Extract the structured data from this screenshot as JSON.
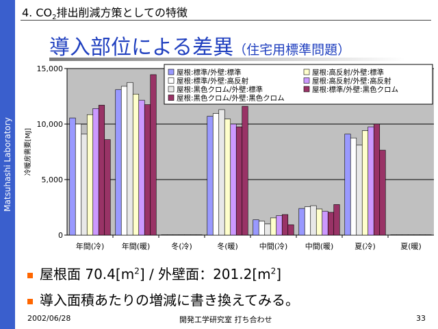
{
  "sidebar": {
    "text": "Matsuhashi Laboratory"
  },
  "header": {
    "section_prefix": "4. CO",
    "section_sub": "2",
    "section_suffix": "排出削減方策としての特徴",
    "title": "導入部位による差異",
    "title_sub": "（住宅用標準問題）"
  },
  "chart_data": {
    "type": "bar",
    "ylabel": "冷暖房需要[MJ]",
    "ylim": [
      0,
      15000
    ],
    "yticks": [
      "0",
      "5,000",
      "10,000",
      "15,000"
    ],
    "ytick_values": [
      0,
      5000,
      10000,
      15000
    ],
    "categories": [
      "年間(冷)",
      "年間(暖)",
      "冬(冷)",
      "冬(暖)",
      "中間(冷)",
      "中間(暖)",
      "夏(冷)",
      "夏(暖)"
    ],
    "series": [
      {
        "name": "屋根:標準/外壁:標準",
        "color": "#9999ff",
        "values": [
          10550,
          13100,
          0,
          10700,
          1380,
          2400,
          9100,
          30
        ]
      },
      {
        "name": "屋根:標準/外壁:高反射",
        "color": "#ffffff",
        "values": [
          10000,
          13400,
          0,
          10950,
          1250,
          2550,
          8750,
          30
        ]
      },
      {
        "name": "屋根:黒色クロム/外壁:標準",
        "color": "#e8e8e8",
        "values": [
          9100,
          13750,
          0,
          11300,
          1000,
          2650,
          8100,
          30
        ]
      },
      {
        "name": "屋根:黒色クロム/外壁:黒色クロム",
        "color": "#993366",
        "values": [
          8600,
          14450,
          0,
          11600,
          930,
          2750,
          7650,
          30
        ]
      },
      {
        "name": "屋根:高反射/外壁:標準",
        "color": "#ffffcc",
        "values": [
          10850,
          12700,
          0,
          10450,
          1550,
          2350,
          9400,
          30
        ]
      },
      {
        "name": "屋根:高反射/外壁:高反射",
        "color": "#cc99ff",
        "values": [
          11400,
          12150,
          0,
          10000,
          1750,
          2150,
          9750,
          30
        ]
      },
      {
        "name": "屋根:標準/外壁:黒色クロム",
        "color": "#993366",
        "values": [
          11700,
          11750,
          0,
          9750,
          1850,
          2050,
          10000,
          30
        ]
      }
    ],
    "bar_order": [
      0,
      1,
      2,
      4,
      5,
      6,
      3
    ],
    "legend_order": [
      0,
      4,
      1,
      5,
      2,
      6,
      3
    ],
    "legend_placement": "top-right",
    "grid": true
  },
  "bullets": [
    {
      "text_a": "屋根面 70.4[m",
      "sup_a": "2",
      "text_b": "] / 外壁面：201.2[m",
      "sup_b": "2",
      "text_c": "]"
    },
    {
      "text_a": "導入面積あたりの増減に書き換えてみる。"
    }
  ],
  "footer": {
    "date": "2002/06/28",
    "center": "開発工学研究室 打ち合わせ",
    "page": "33"
  }
}
